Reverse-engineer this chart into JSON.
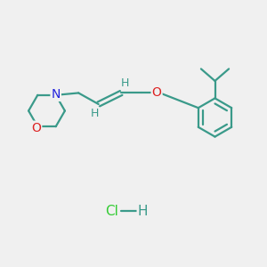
{
  "background_color": "#f0f0f0",
  "bond_color": "#3a9a8a",
  "N_color": "#2222dd",
  "O_color": "#dd2222",
  "Cl_color": "#33cc33",
  "H_color": "#3a9a8a",
  "fig_w": 3.0,
  "fig_h": 3.0,
  "dpi": 100,
  "xlim": [
    0,
    10
  ],
  "ylim": [
    0,
    10
  ]
}
